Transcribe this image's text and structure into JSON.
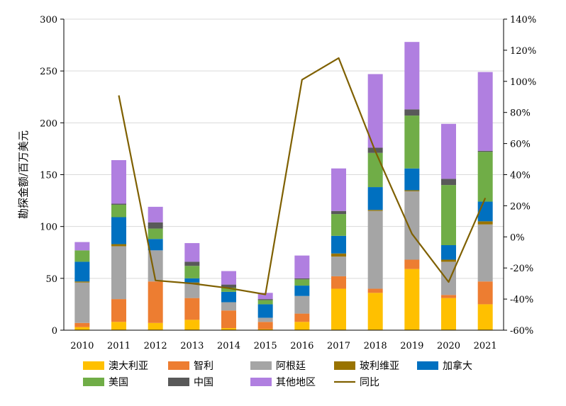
{
  "chart_data": {
    "type": "bar",
    "stacked": true,
    "title": "",
    "xlabel": "",
    "ylabel": "勘探金额/百万美元",
    "ylim": [
      0,
      300
    ],
    "yticks": [
      0,
      50,
      100,
      150,
      200,
      250,
      300
    ],
    "y2lim": [
      -60,
      140
    ],
    "y2ticks": [
      "-60%",
      "-40%",
      "-20%",
      "0%",
      "20%",
      "40%",
      "60%",
      "80%",
      "100%",
      "120%",
      "140%"
    ],
    "categories": [
      "2010",
      "2011",
      "2012",
      "2013",
      "2014",
      "2015",
      "2016",
      "2017",
      "2018",
      "2019",
      "2020",
      "2021"
    ],
    "series": [
      {
        "name": "澳大利亚",
        "color": "#FFC000",
        "values": [
          3,
          8,
          7,
          10,
          2,
          1,
          8,
          40,
          36,
          59,
          31,
          25
        ]
      },
      {
        "name": "智利",
        "color": "#ED7D31",
        "values": [
          4,
          22,
          40,
          21,
          17,
          7,
          8,
          12,
          4,
          9,
          3,
          22
        ]
      },
      {
        "name": "阿根廷",
        "color": "#A5A5A5",
        "values": [
          39,
          51,
          30,
          14,
          8,
          4,
          17,
          19,
          75,
          66,
          32,
          55
        ]
      },
      {
        "name": "玻利维亚",
        "color": "#997300",
        "values": [
          1,
          2,
          0,
          1,
          0,
          0,
          0,
          3,
          1,
          1,
          2,
          3
        ]
      },
      {
        "name": "加拿大",
        "color": "#0070C0",
        "values": [
          19,
          26,
          11,
          4,
          10,
          13,
          10,
          17,
          22,
          21,
          14,
          19
        ]
      },
      {
        "name": "美国",
        "color": "#70AD47",
        "values": [
          11,
          12,
          10,
          12,
          4,
          4,
          6,
          21,
          33,
          51,
          58,
          48
        ]
      },
      {
        "name": "中国",
        "color": "#595959",
        "values": [
          0,
          1,
          6,
          4,
          3,
          1,
          1,
          3,
          5,
          6,
          6,
          1
        ]
      },
      {
        "name": "其他地区",
        "color": "#B07FE0",
        "values": [
          8,
          42,
          15,
          18,
          13,
          6,
          22,
          41,
          71,
          65,
          53,
          76
        ]
      }
    ],
    "line": {
      "name": "同比",
      "color": "#7F6000",
      "axis": "right",
      "values": [
        null,
        91,
        -28,
        -30,
        -33,
        -37,
        101,
        115,
        55,
        2,
        -29,
        25
      ]
    },
    "legend_position": "bottom"
  }
}
